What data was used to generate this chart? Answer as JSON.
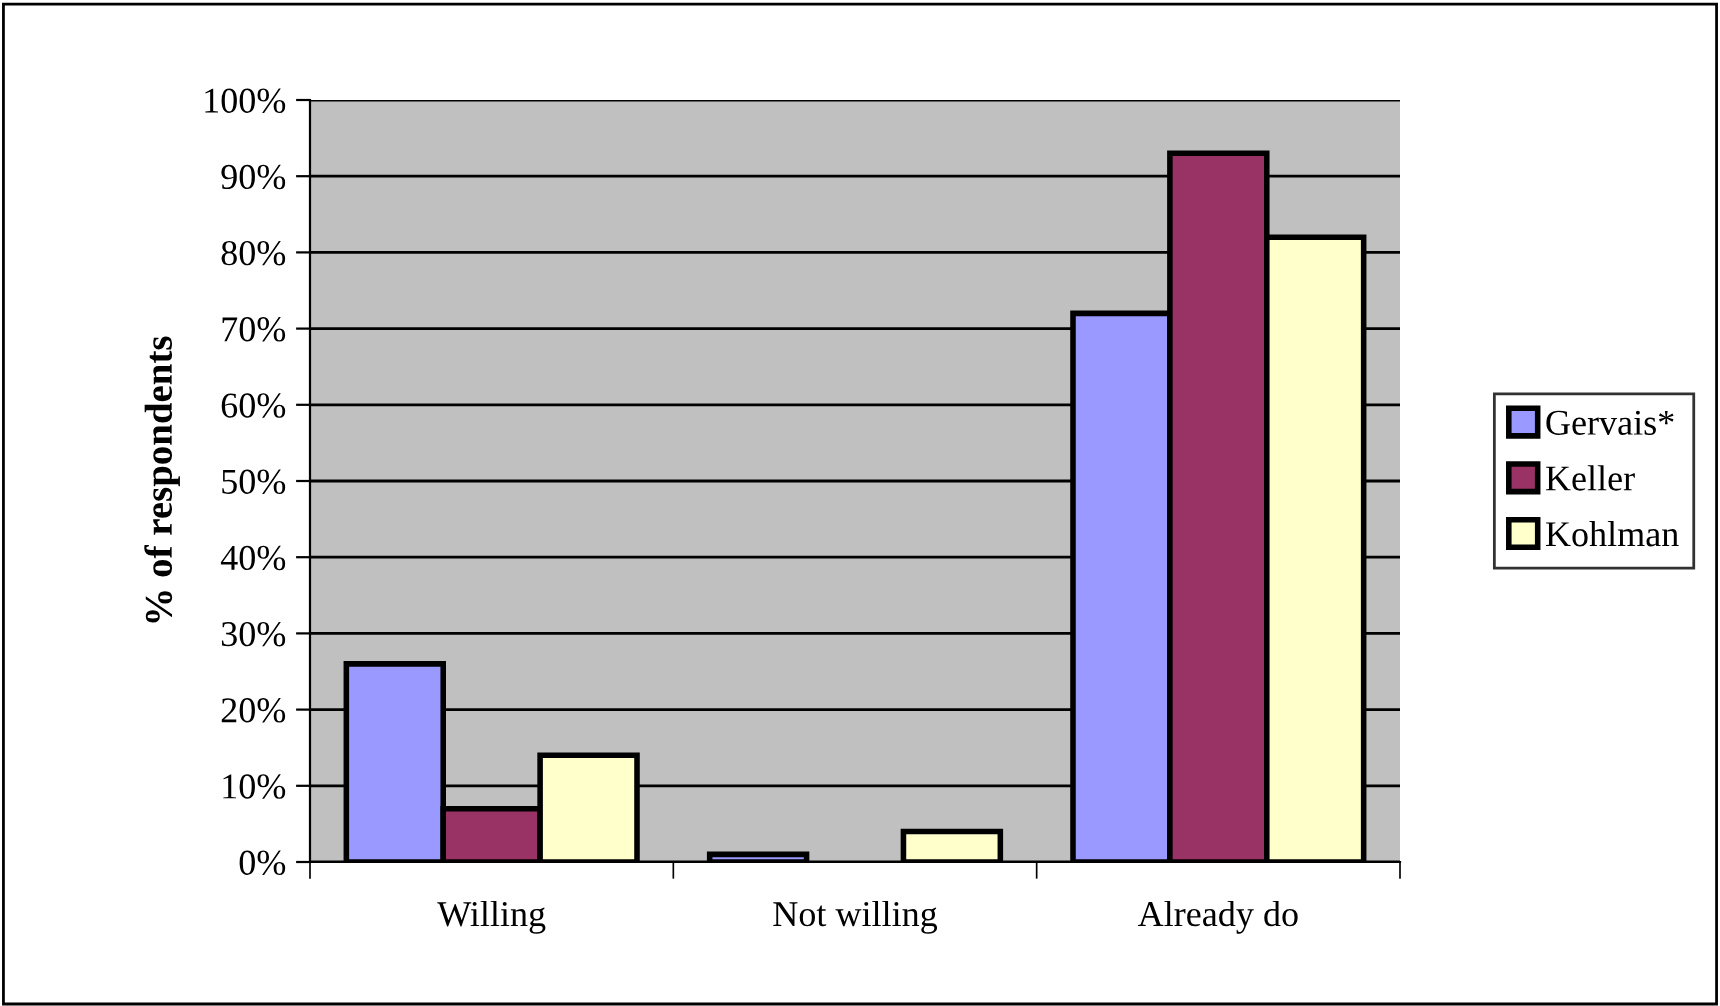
{
  "chart_data": {
    "type": "bar",
    "ylabel": "% of respondents",
    "categories": [
      "Willing",
      "Not willing",
      "Already do"
    ],
    "series": [
      {
        "name": "Gervais*",
        "color": "#9999ff",
        "values": [
          26,
          1,
          72
        ]
      },
      {
        "name": "Keller",
        "color": "#993366",
        "values": [
          7,
          0,
          93
        ]
      },
      {
        "name": "Kohlman",
        "color": "#ffffcc",
        "values": [
          14,
          4,
          82
        ]
      }
    ],
    "ylim": [
      0,
      100
    ],
    "yticks": [
      {
        "value": 0,
        "label": "0%"
      },
      {
        "value": 10,
        "label": "10%"
      },
      {
        "value": 20,
        "label": "20%"
      },
      {
        "value": 30,
        "label": "30%"
      },
      {
        "value": 40,
        "label": "40%"
      },
      {
        "value": 50,
        "label": "50%"
      },
      {
        "value": 60,
        "label": "60%"
      },
      {
        "value": 70,
        "label": "70%"
      },
      {
        "value": 80,
        "label": "80%"
      },
      {
        "value": 90,
        "label": "90%"
      },
      {
        "value": 100,
        "label": "100%"
      }
    ],
    "grid": "y",
    "legend": "right"
  }
}
